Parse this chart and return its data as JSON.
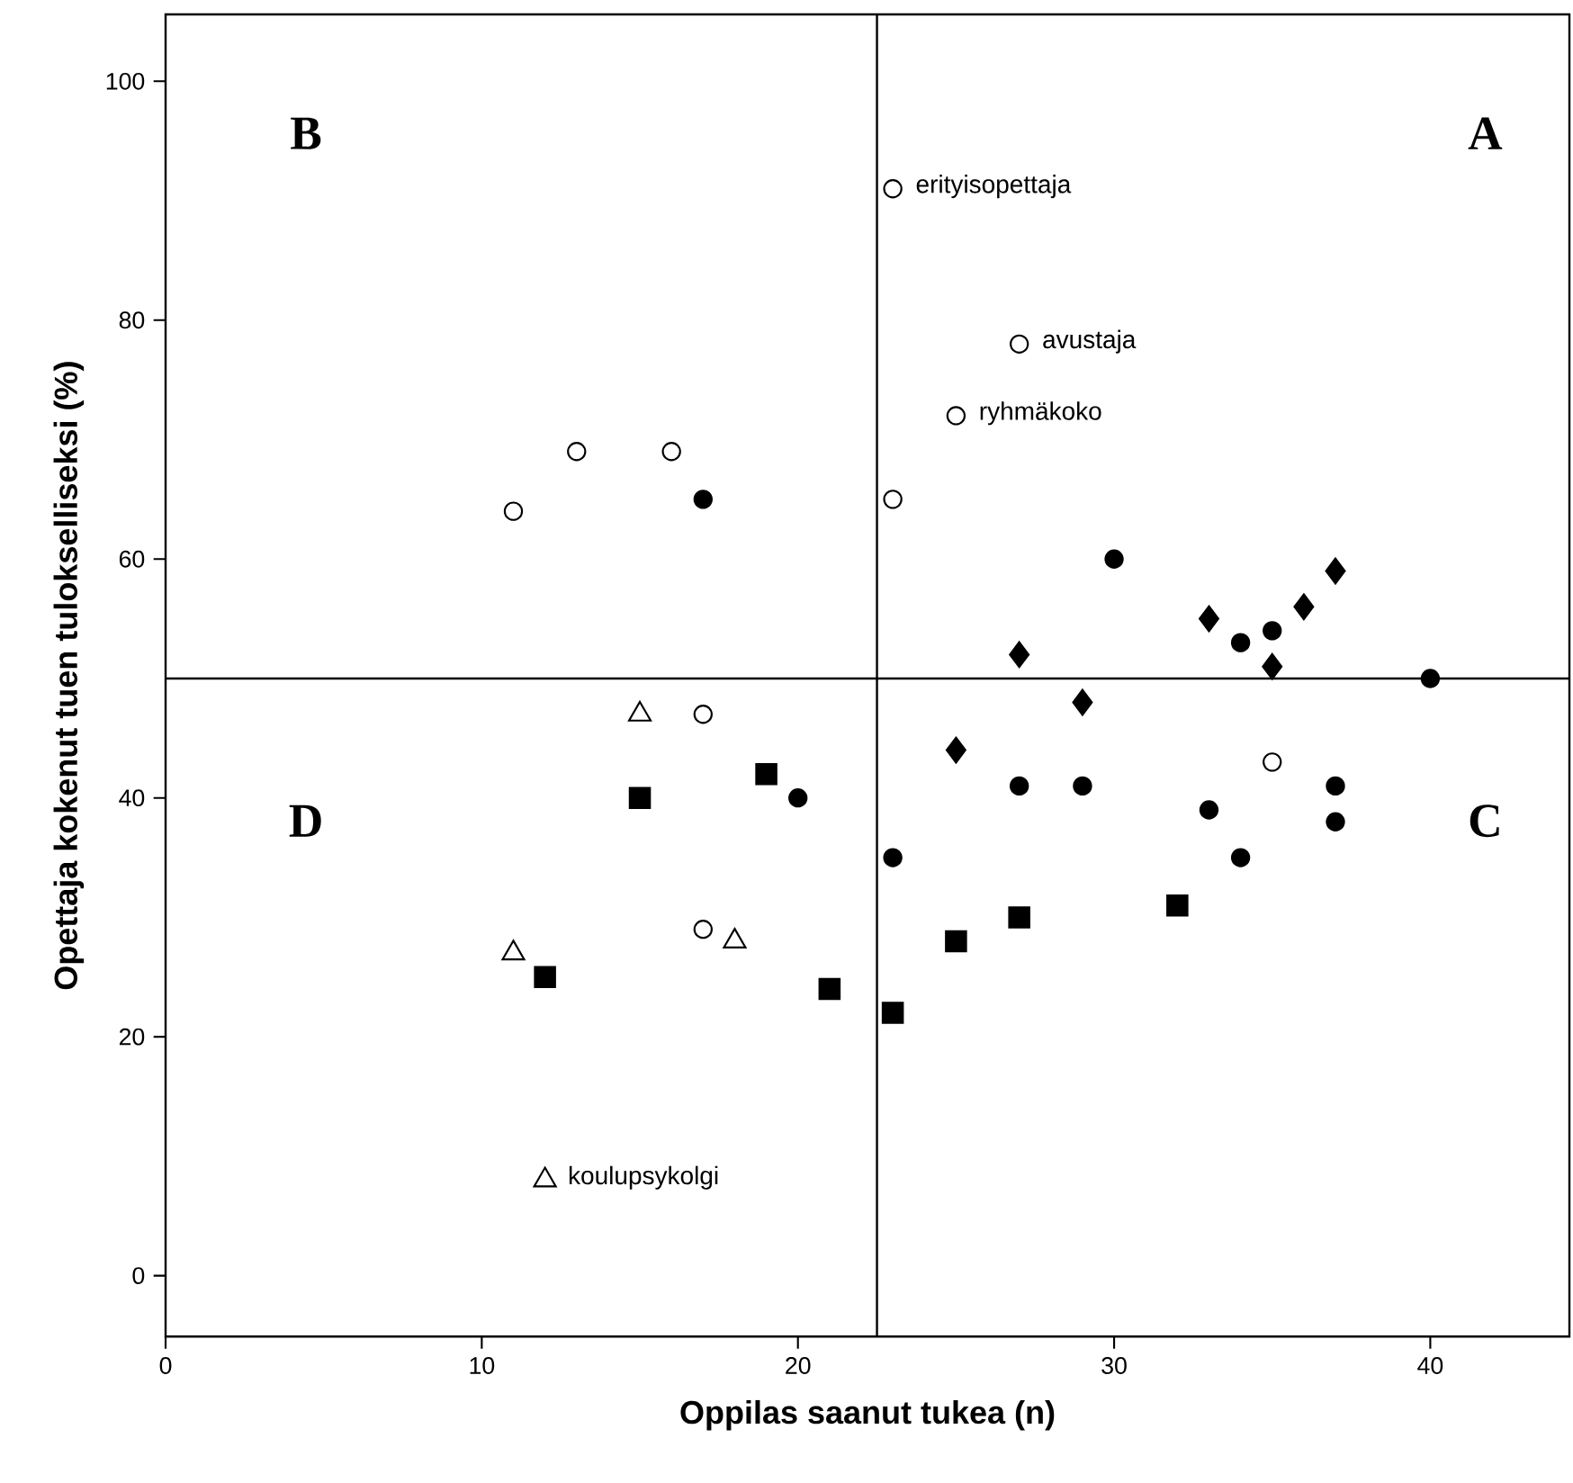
{
  "chart_data": {
    "type": "scatter",
    "xlabel": "Oppilas saanut tukea (n)",
    "ylabel": "Opettaja kokenut tuen tulokselliseksi (%)",
    "xlim": [
      0,
      44.4
    ],
    "ylim": [
      -5.1,
      105.6
    ],
    "xticks": [
      0,
      10,
      20,
      30,
      40
    ],
    "yticks": [
      0,
      20,
      40,
      60,
      80,
      100
    ],
    "series": [
      {
        "color": "#ffffff",
        "marker": "circle",
        "x": [
          23,
          27,
          25,
          23,
          11,
          13,
          16,
          17,
          17,
          35
        ],
        "values": [
          91,
          78,
          72,
          65,
          64,
          69,
          69,
          47,
          29,
          43
        ]
      },
      {
        "color": "#000000",
        "marker": "circle",
        "x": [
          17,
          30,
          34,
          35,
          40,
          20,
          27,
          29,
          23,
          33,
          34,
          37,
          37
        ],
        "values": [
          65,
          60,
          53,
          54,
          50,
          40,
          41,
          41,
          35,
          39,
          35,
          41,
          38
        ]
      },
      {
        "color": "#000000",
        "marker": "diamond",
        "x": [
          27,
          33,
          36,
          37,
          35,
          29,
          25
        ],
        "values": [
          52,
          55,
          56,
          59,
          51,
          48,
          44
        ]
      },
      {
        "color": "#000000",
        "marker": "square",
        "x": [
          15,
          19,
          12,
          21,
          23,
          25,
          27,
          32
        ],
        "values": [
          40,
          42,
          25,
          24,
          22,
          28,
          30,
          31
        ]
      },
      {
        "color": "#ffffff",
        "marker": "triangle",
        "x": [
          15,
          11,
          18,
          12
        ],
        "values": [
          47,
          27,
          28,
          8
        ]
      }
    ],
    "ref_lines": [
      {
        "axis": "x",
        "value": 22.5
      },
      {
        "axis": "y",
        "value": 50
      }
    ],
    "annotations": [
      "A",
      "B",
      "C",
      "D",
      {
        "text": "erityisopettaja",
        "x": 23,
        "y": 91
      },
      {
        "text": "avustaja",
        "x": 27,
        "y": 78
      },
      {
        "text": "ryhmäkoko",
        "x": 25,
        "y": 72
      },
      {
        "text": "koulupsykolgi",
        "x": 12,
        "y": 8
      }
    ]
  }
}
